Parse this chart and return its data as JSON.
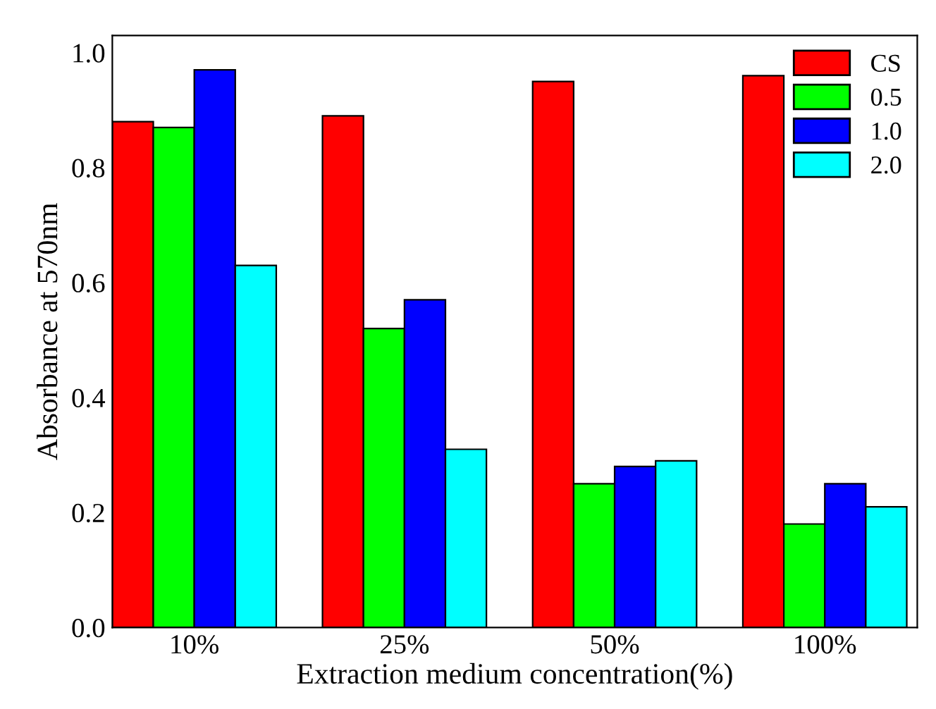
{
  "chart_data": {
    "type": "bar",
    "xlabel": "Extraction medium concentration(%)",
    "ylabel": "Absorbance at 570nm",
    "categories": [
      "10%",
      "25%",
      "50%",
      "100%"
    ],
    "series": [
      {
        "name": "CS",
        "color": "#ff0000",
        "values": [
          0.88,
          0.89,
          0.95,
          0.96
        ]
      },
      {
        "name": "0.5",
        "color": "#00ff00",
        "values": [
          0.87,
          0.52,
          0.25,
          0.18
        ]
      },
      {
        "name": "1.0",
        "color": "#0000ff",
        "values": [
          0.97,
          0.57,
          0.28,
          0.25
        ]
      },
      {
        "name": "2.0",
        "color": "#00ffff",
        "values": [
          0.63,
          0.31,
          0.29,
          0.21
        ]
      }
    ],
    "ylim": [
      0,
      1.03
    ],
    "yticks": [
      {
        "value": 0,
        "label": "0.0"
      },
      0.2,
      0.4,
      0.6,
      0.8,
      {
        "value": 1,
        "label": "1.0"
      }
    ],
    "grid": false,
    "legend": "top right"
  }
}
